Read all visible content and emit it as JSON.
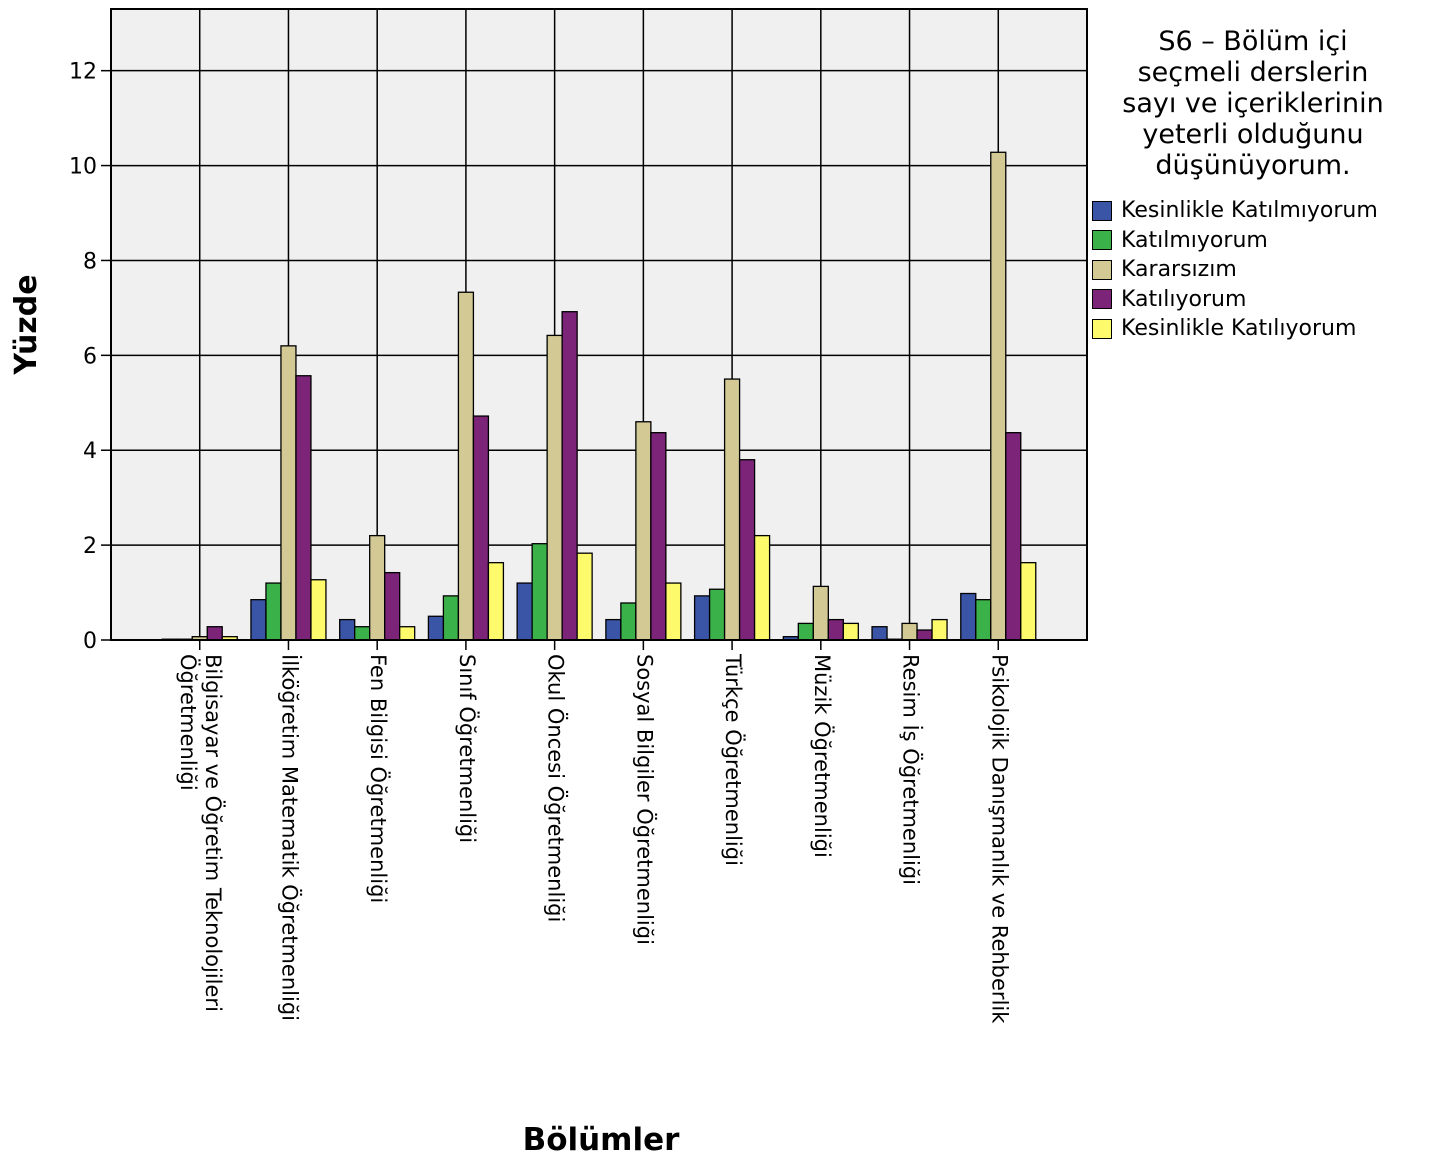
{
  "chart_data": {
    "type": "bar",
    "title": "S6 - Bölüm içi seçmeli derslerin sayı ve içeriklerinin yeterli olduğunu düşünüyorum.",
    "title_lines": [
      "S6 – Bölüm içi",
      "seçmeli derslerin",
      "sayı ve içeriklerinin",
      "yeterli olduğunu",
      "düşünüyorum."
    ],
    "xlabel": "Bölümler",
    "ylabel": "Yüzde",
    "ylim": [
      0,
      13.3
    ],
    "yticks": [
      0,
      2,
      4,
      6,
      8,
      10,
      12
    ],
    "grid": true,
    "legend_position": "right",
    "categories": [
      [
        "Bilgisayar ve Öğretim Teknolojileri",
        "Öğretmenliği"
      ],
      [
        "İlköğretim Matematik Öğretmenliği"
      ],
      [
        "Fen Bilgisi Öğretmenliği"
      ],
      [
        "Sınıf Öğretmenliği"
      ],
      [
        "Okul Öncesi Öğretmenliği"
      ],
      [
        "Sosyal Bilgiler Öğretmenliği"
      ],
      [
        "Türkçe Öğretmenliği"
      ],
      [
        "Müzik Öğretmenliği"
      ],
      [
        "Resim İş Öğretmenliği"
      ],
      [
        "Psikolojik Danışmanlık ve Rehberlik"
      ]
    ],
    "series": [
      {
        "name": "Kesinlikle Katılmıyorum",
        "color": "#3b55a6",
        "values": [
          0.0,
          0.85,
          0.43,
          0.5,
          1.2,
          0.43,
          0.93,
          0.07,
          0.28,
          0.98
        ]
      },
      {
        "name": "Katılmıyorum",
        "color": "#3bb14a",
        "values": [
          0.0,
          1.2,
          0.28,
          0.93,
          2.03,
          0.78,
          1.07,
          0.35,
          0.0,
          0.85
        ]
      },
      {
        "name": "Kararsızım",
        "color": "#d2c995",
        "values": [
          0.07,
          6.2,
          2.2,
          7.33,
          6.42,
          4.6,
          5.5,
          1.13,
          0.35,
          10.28
        ]
      },
      {
        "name": "Katılıyorum",
        "color": "#7b2478",
        "values": [
          0.28,
          5.57,
          1.42,
          4.72,
          6.92,
          4.37,
          3.8,
          0.43,
          0.21,
          4.37
        ]
      },
      {
        "name": "Kesinlikle Katılıyorum",
        "color": "#fdfb6c",
        "values": [
          0.07,
          1.27,
          0.28,
          1.63,
          1.83,
          1.2,
          2.2,
          0.35,
          0.43,
          1.63
        ]
      }
    ],
    "plot_background": "#f0f0f0"
  }
}
